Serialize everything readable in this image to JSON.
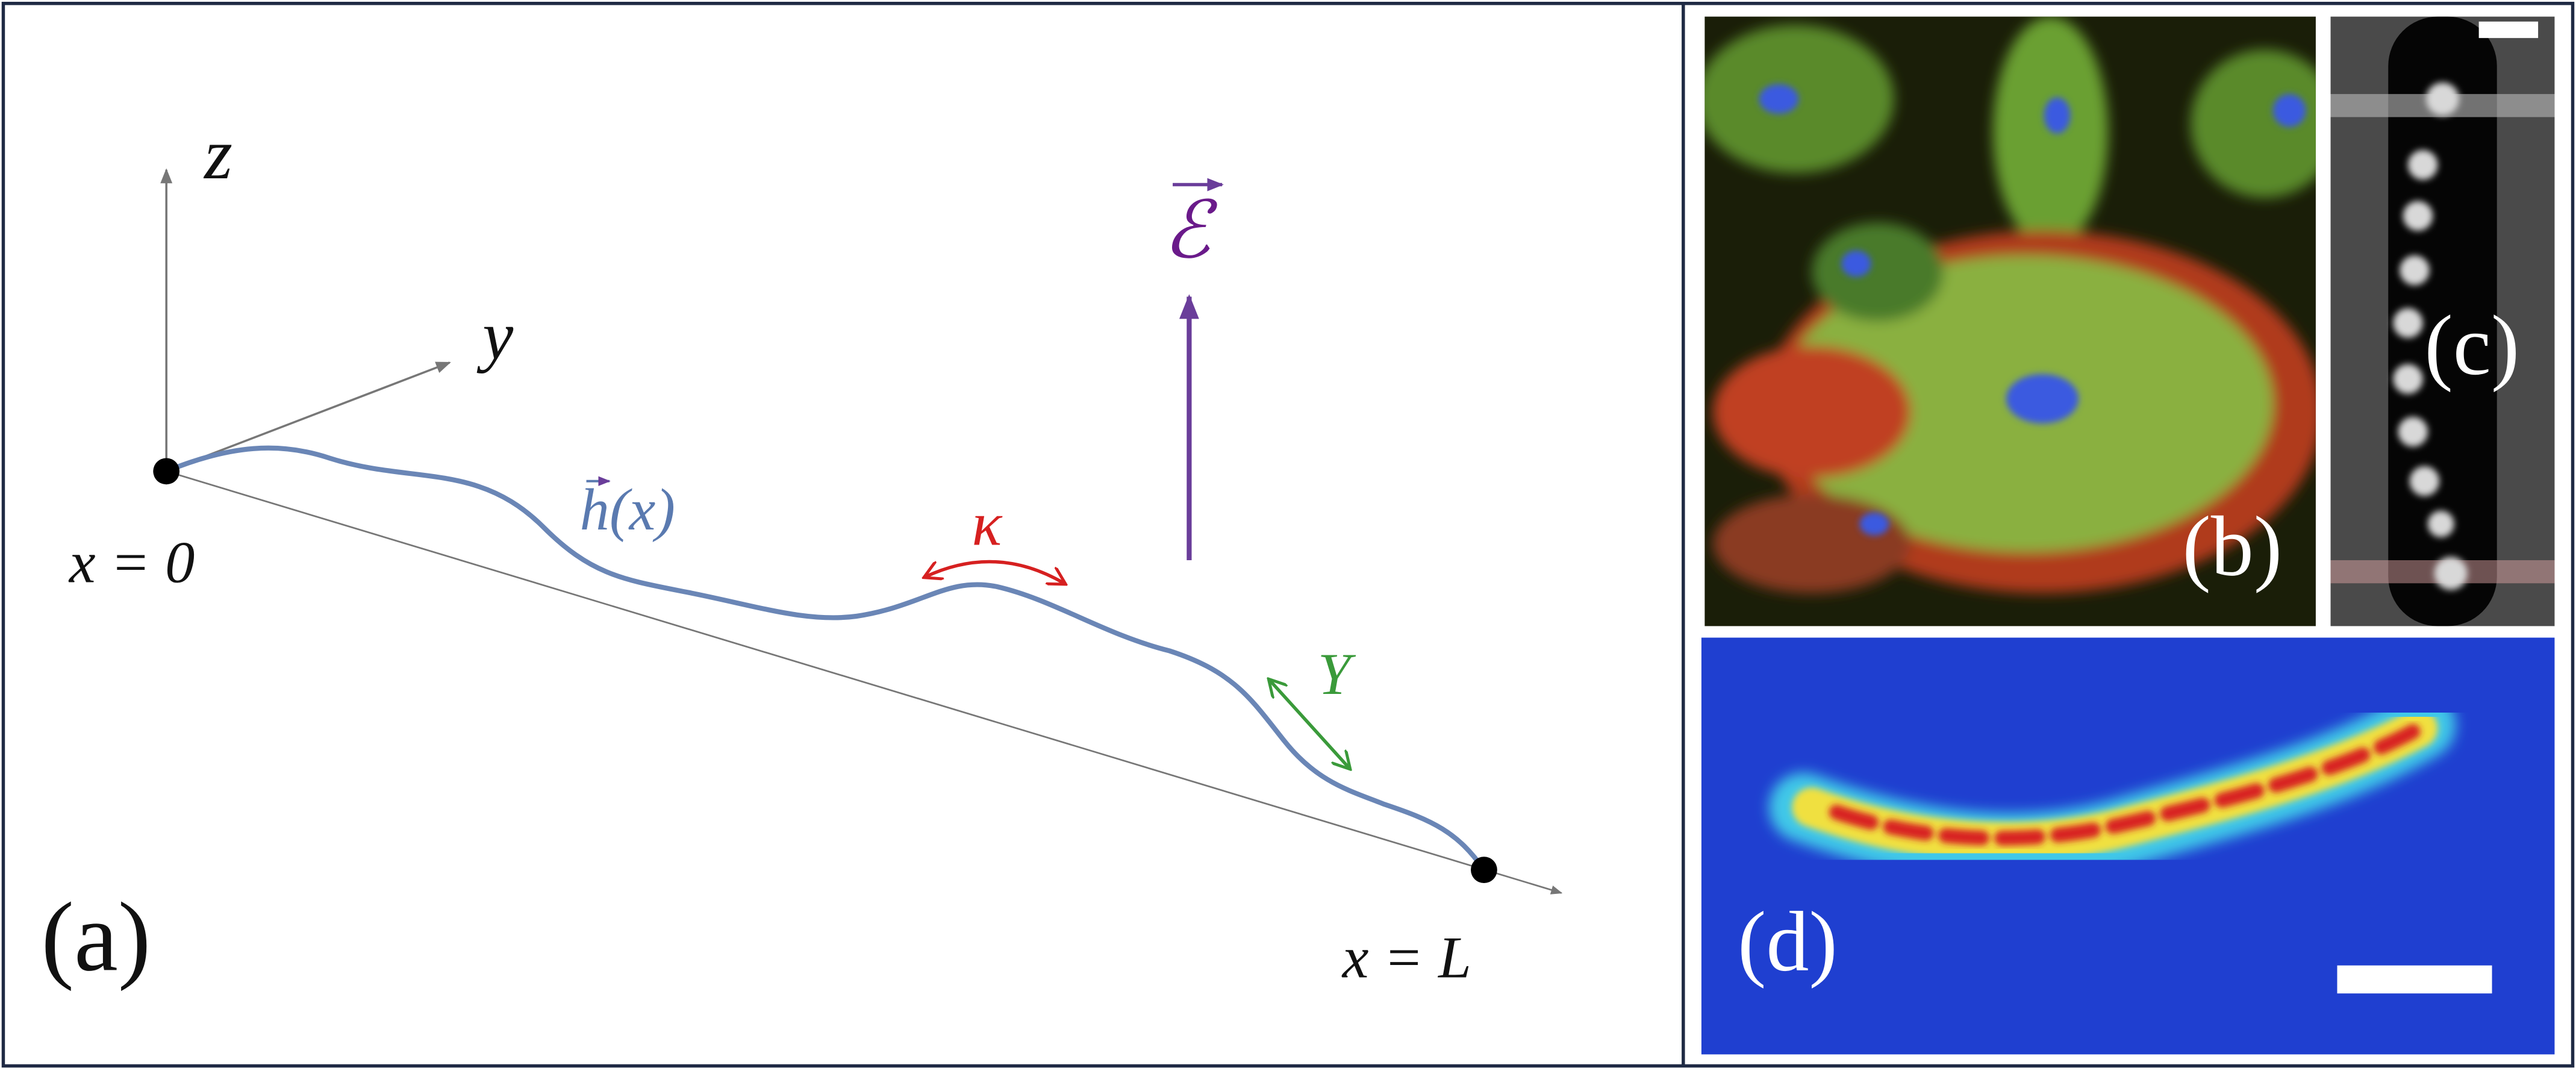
{
  "panel_a": {
    "label": "(a)",
    "z_axis": "z",
    "y_axis": "y",
    "start": "x = 0",
    "end": "x = L",
    "curve": "h(x)",
    "bending": "κ",
    "stretching": "Y",
    "field": "ℰ"
  },
  "panel_b": {
    "label": "(b)"
  },
  "panel_c": {
    "label": "(c)"
  },
  "panel_d": {
    "label": "(d)"
  }
}
